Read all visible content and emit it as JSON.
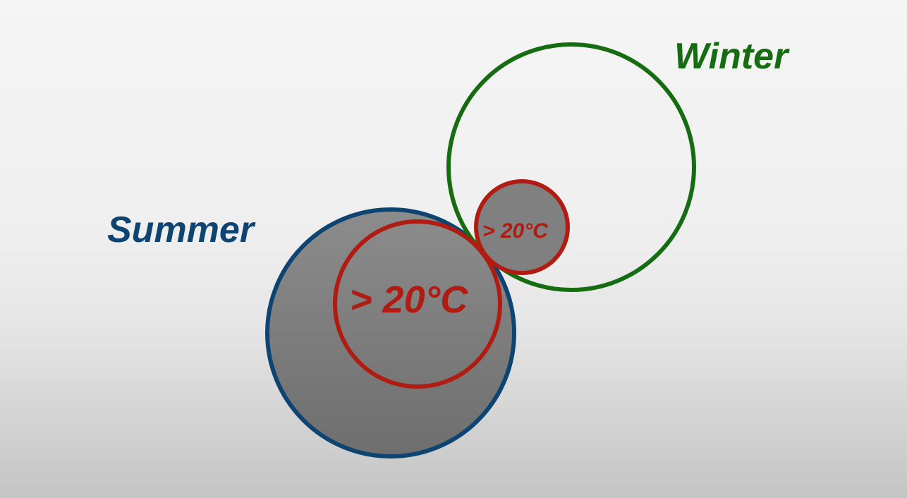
{
  "labels": {
    "summer": "Summer",
    "winter": "Winter",
    "summer_inner": "> 20°C",
    "winter_inner": "> 20°C"
  },
  "colors": {
    "summer": "#0d4472",
    "winter": "#166c11",
    "hot": "#b01c12",
    "fill": "#808080"
  }
}
